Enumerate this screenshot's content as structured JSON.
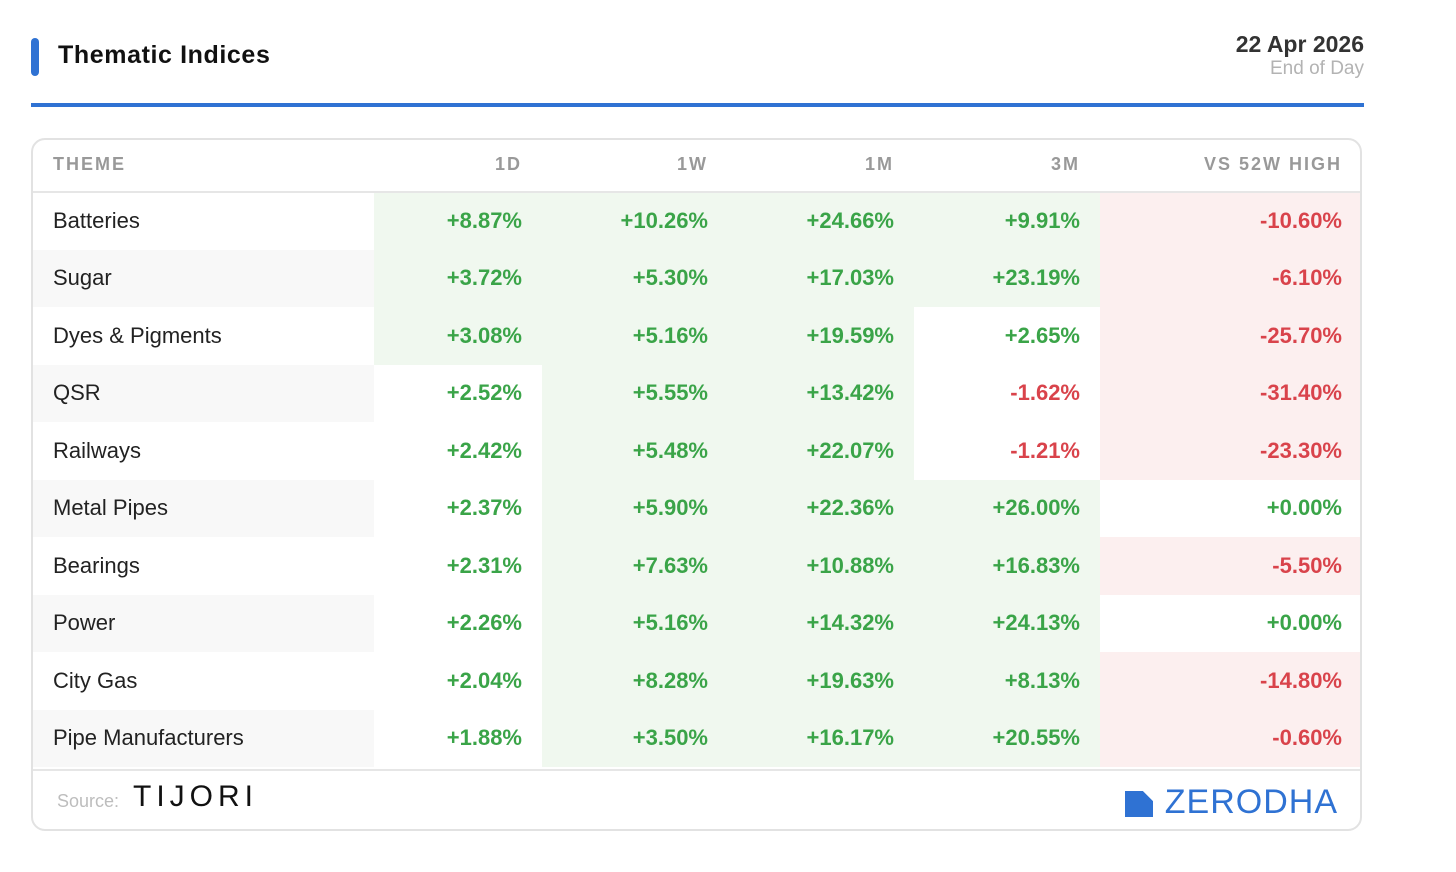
{
  "header": {
    "title": "Thematic Indices",
    "date": "22 Apr 2026",
    "subtitle": "End of Day",
    "accent_color": "#2f72d3"
  },
  "table": {
    "columns": [
      "THEME",
      "1D",
      "1W",
      "1M",
      "3M",
      "VS 52W HIGH"
    ],
    "rows": [
      {
        "theme": "Batteries",
        "d1": "+8.87%",
        "w1": "+10.26%",
        "m1": "+24.66%",
        "m3": "+9.91%",
        "h52": "-10.60%"
      },
      {
        "theme": "Sugar",
        "d1": "+3.72%",
        "w1": "+5.30%",
        "m1": "+17.03%",
        "m3": "+23.19%",
        "h52": "-6.10%"
      },
      {
        "theme": "Dyes & Pigments",
        "d1": "+3.08%",
        "w1": "+5.16%",
        "m1": "+19.59%",
        "m3": "+2.65%",
        "h52": "-25.70%"
      },
      {
        "theme": "QSR",
        "d1": "+2.52%",
        "w1": "+5.55%",
        "m1": "+13.42%",
        "m3": "-1.62%",
        "h52": "-31.40%"
      },
      {
        "theme": "Railways",
        "d1": "+2.42%",
        "w1": "+5.48%",
        "m1": "+22.07%",
        "m3": "-1.21%",
        "h52": "-23.30%"
      },
      {
        "theme": "Metal Pipes",
        "d1": "+2.37%",
        "w1": "+5.90%",
        "m1": "+22.36%",
        "m3": "+26.00%",
        "h52": "+0.00%"
      },
      {
        "theme": "Bearings",
        "d1": "+2.31%",
        "w1": "+7.63%",
        "m1": "+10.88%",
        "m3": "+16.83%",
        "h52": "-5.50%"
      },
      {
        "theme": "Power",
        "d1": "+2.26%",
        "w1": "+5.16%",
        "m1": "+14.32%",
        "m3": "+24.13%",
        "h52": "+0.00%"
      },
      {
        "theme": "City Gas",
        "d1": "+2.04%",
        "w1": "+8.28%",
        "m1": "+19.63%",
        "m3": "+8.13%",
        "h52": "-14.80%"
      },
      {
        "theme": "Pipe Manufacturers",
        "d1": "+1.88%",
        "w1": "+3.50%",
        "m1": "+16.17%",
        "m3": "+20.55%",
        "h52": "-0.60%"
      }
    ],
    "positive_color": "#3aa448",
    "negative_color": "#d9434b"
  },
  "footer": {
    "source_label": "Source:",
    "source_brand": "TIJORI",
    "brand": "ZERODHA",
    "brand_icon": "zerodha-logo-icon"
  }
}
